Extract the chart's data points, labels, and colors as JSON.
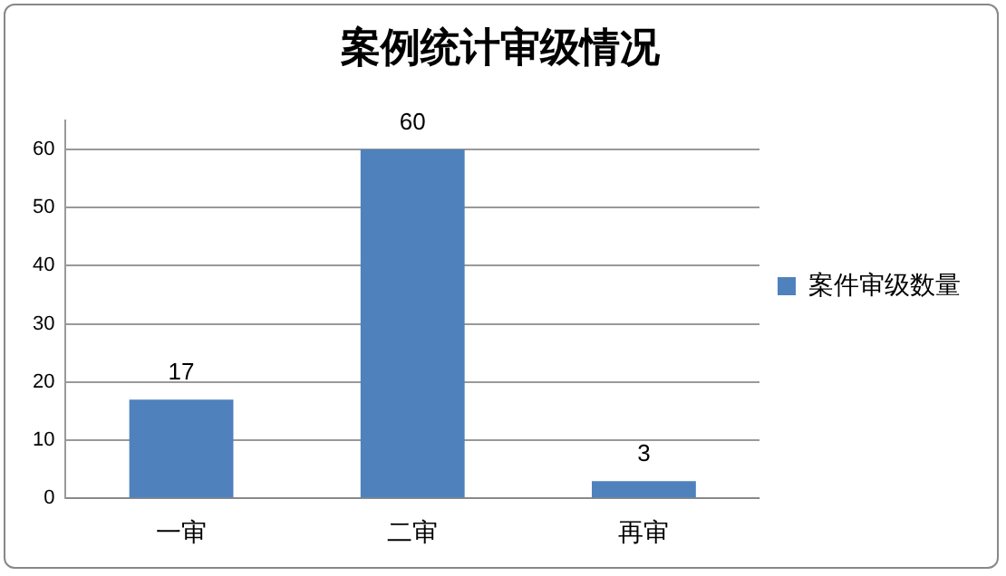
{
  "chart_data": {
    "type": "bar",
    "title": "案例统计审级情况",
    "categories": [
      "一审",
      "二审",
      "再审"
    ],
    "series": [
      {
        "name": "案件审级数量",
        "color": "#4f81bd",
        "values": [
          17,
          60,
          3
        ]
      }
    ],
    "ylim": [
      0,
      65
    ],
    "yticks": [
      0,
      10,
      20,
      30,
      40,
      50,
      60
    ],
    "grid": "y",
    "legend": "right",
    "data_labels": true
  }
}
